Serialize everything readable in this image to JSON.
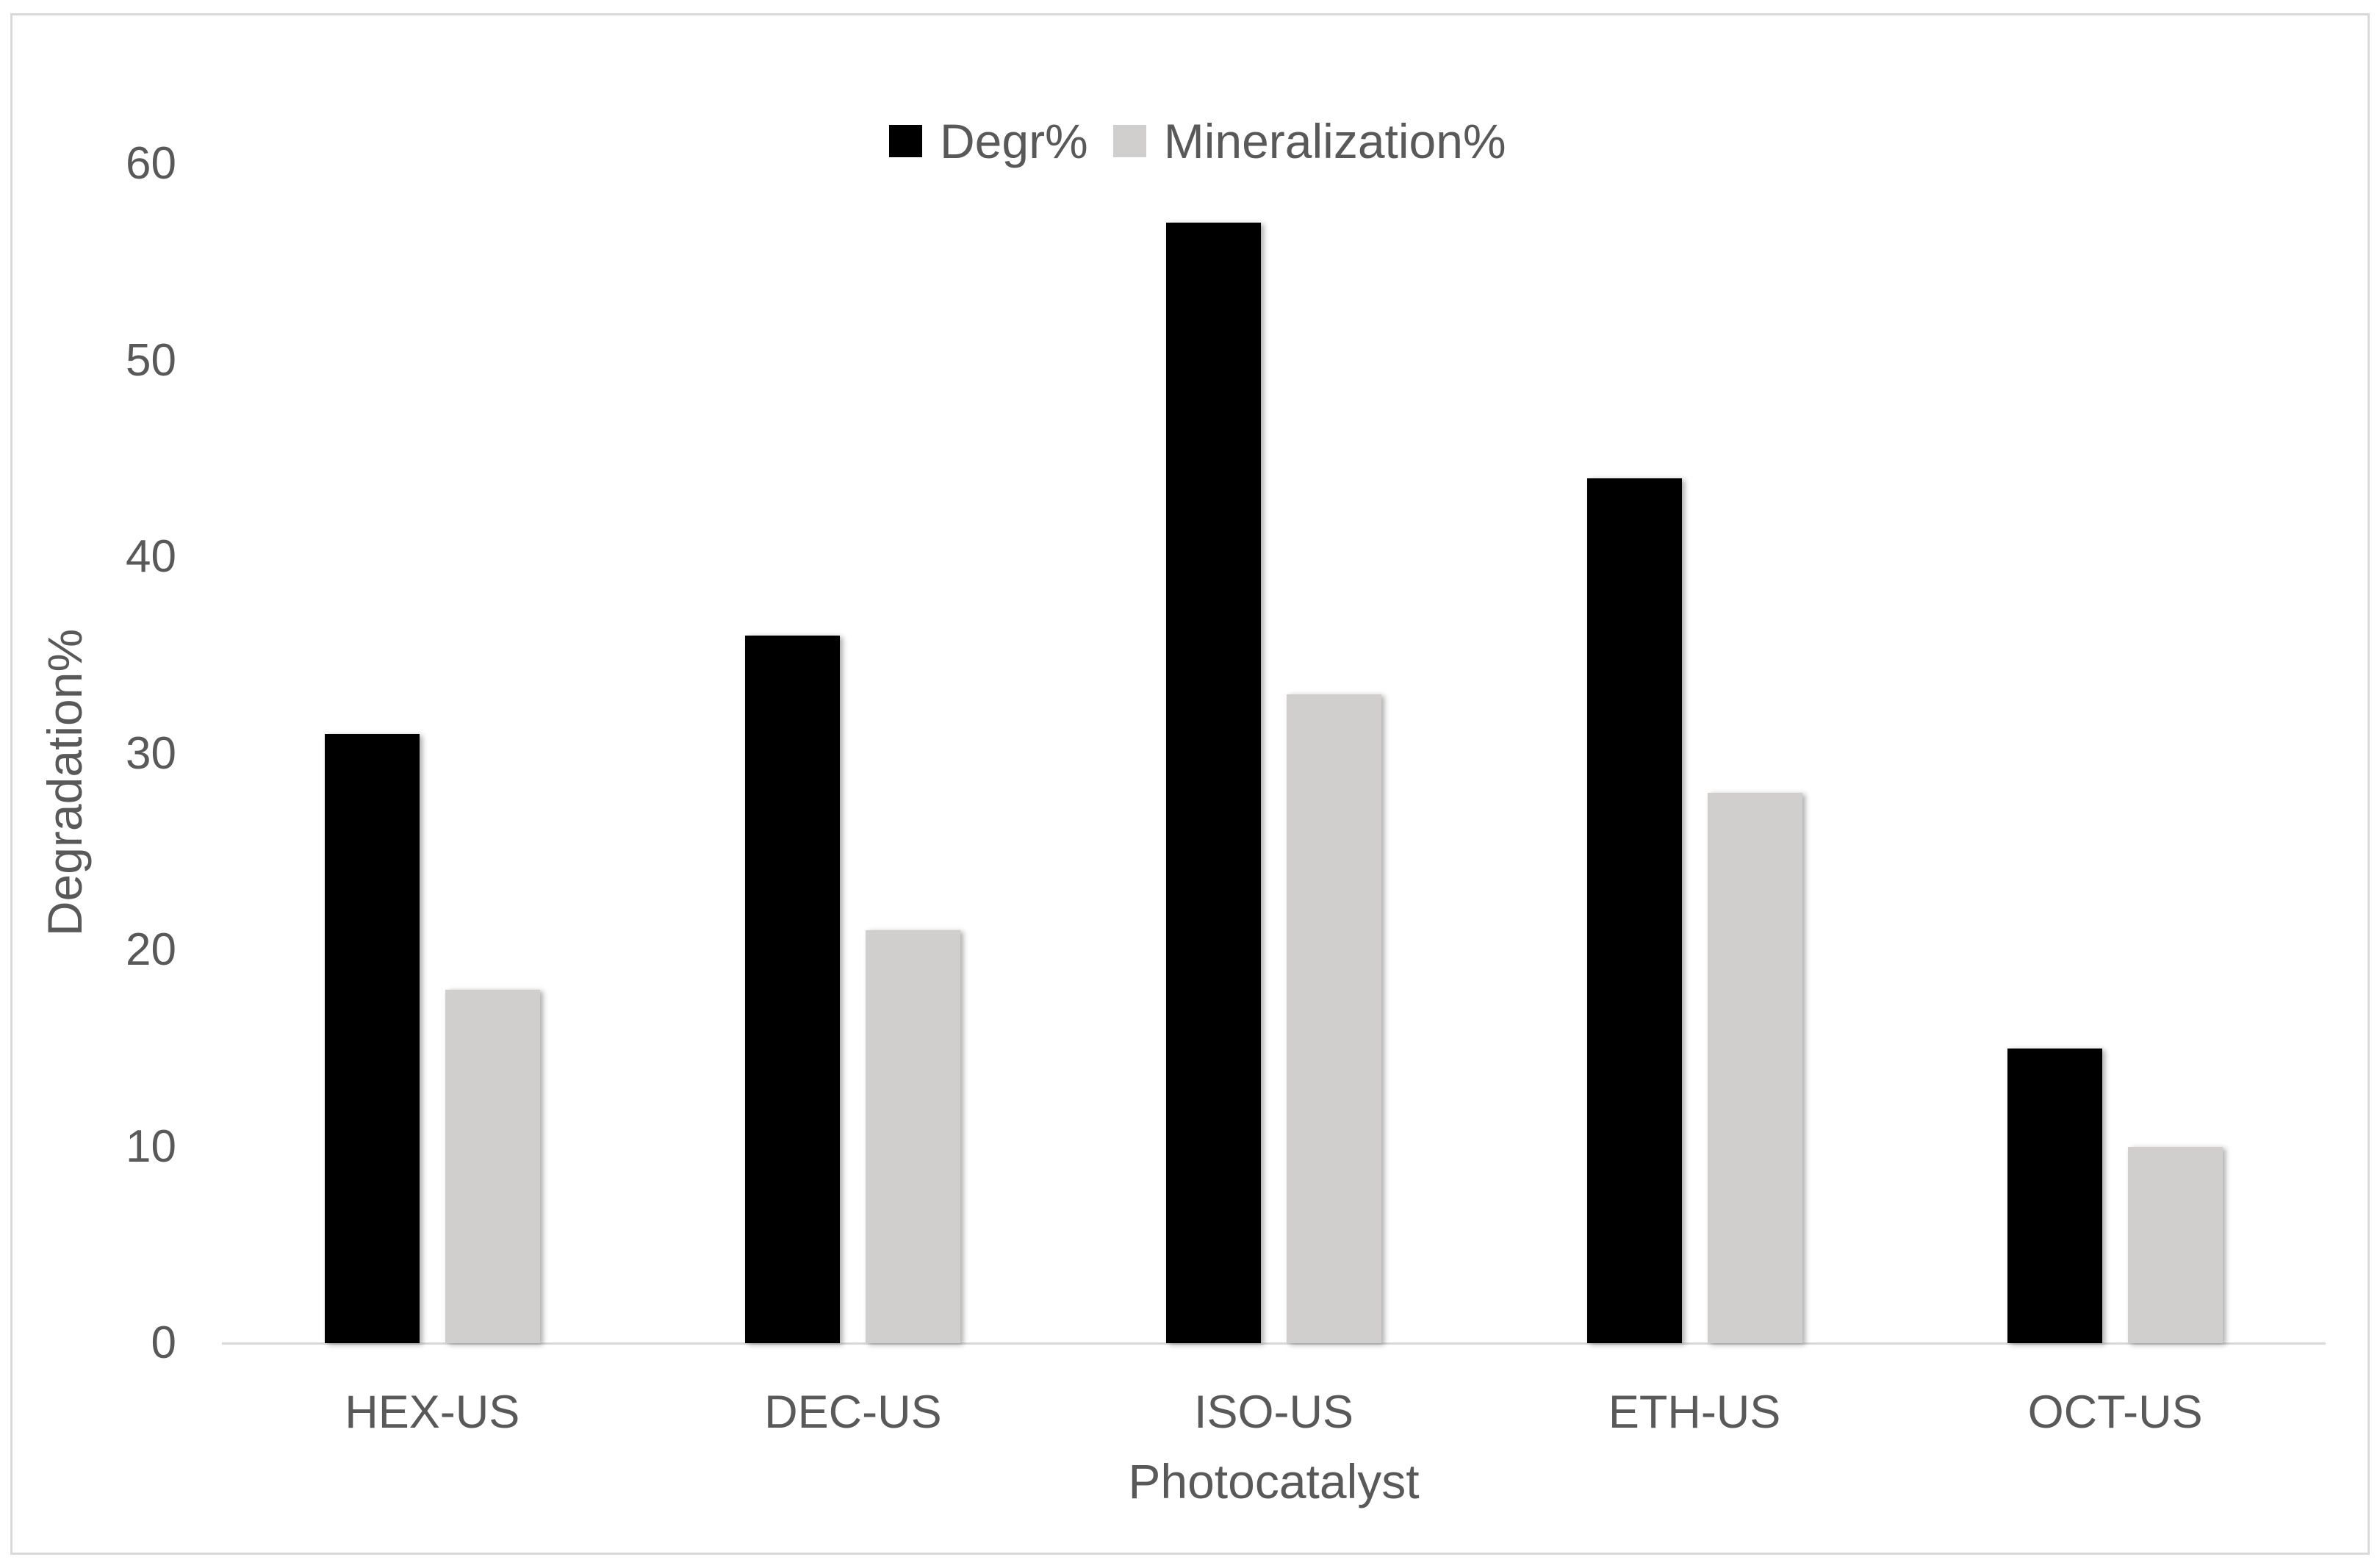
{
  "chart_data": {
    "type": "bar",
    "title": "",
    "categories": [
      "HEX-US",
      "DEC-US",
      "ISO-US",
      "ETH-US",
      "OCT-US"
    ],
    "series": [
      {
        "name": "Degr%",
        "color": "#000000",
        "values": [
          31,
          36,
          57,
          44,
          15
        ]
      },
      {
        "name": "Mineralization%",
        "color": "#d1cfce",
        "values": [
          18,
          21,
          33,
          28,
          10
        ]
      }
    ],
    "xlabel": "Photocatalyst",
    "ylabel": "Degradation%",
    "ylim": [
      0,
      60
    ],
    "yticks": [
      0,
      10,
      20,
      30,
      40,
      50,
      60
    ],
    "legend_position": "top-center",
    "grid": false
  },
  "style": {
    "text_color": "#595959",
    "axis_line_color": "#d9d9d9",
    "border_color": "#d9d9d9",
    "background": "#ffffff"
  }
}
